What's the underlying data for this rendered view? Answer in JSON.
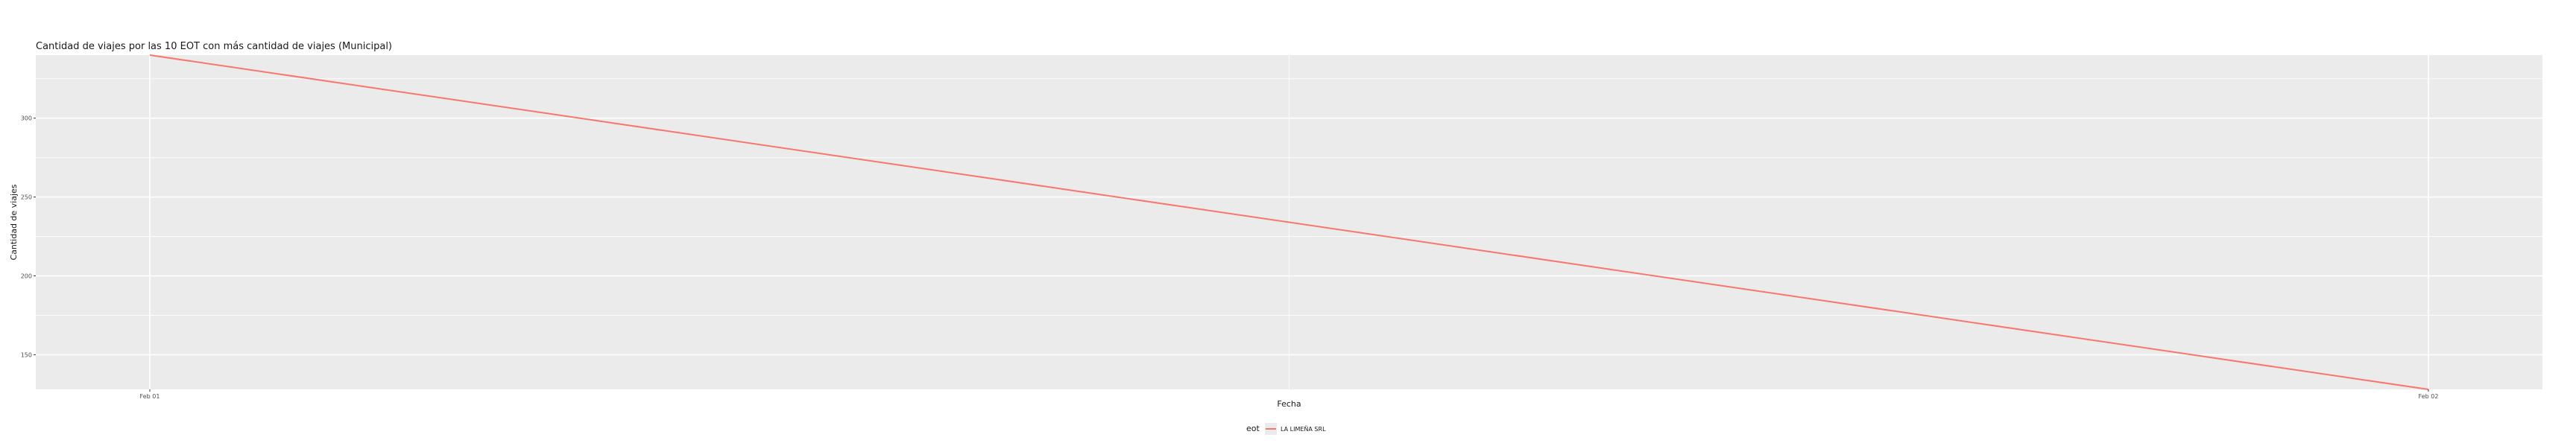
{
  "chart_data": {
    "type": "line",
    "title": "Cantidad de viajes por las 10 EOT con más cantidad de viajes (Municipal)",
    "xlabel": "Fecha",
    "ylabel": "Cantidad de viajes",
    "x": [
      "Feb 01",
      "Feb 02"
    ],
    "x_ticks": [
      "Feb 01",
      "Feb 02"
    ],
    "y_ticks": [
      150,
      200,
      250,
      300
    ],
    "ylim": [
      128,
      340
    ],
    "grid": true,
    "legend_position": "bottom",
    "legend_title": "eot",
    "panel_color": "#ebebeb",
    "grid_color": "#ffffff",
    "series": [
      {
        "name": "LA LIMEÑA SRL",
        "color": "#f8766d",
        "values": [
          340,
          128
        ]
      }
    ]
  }
}
